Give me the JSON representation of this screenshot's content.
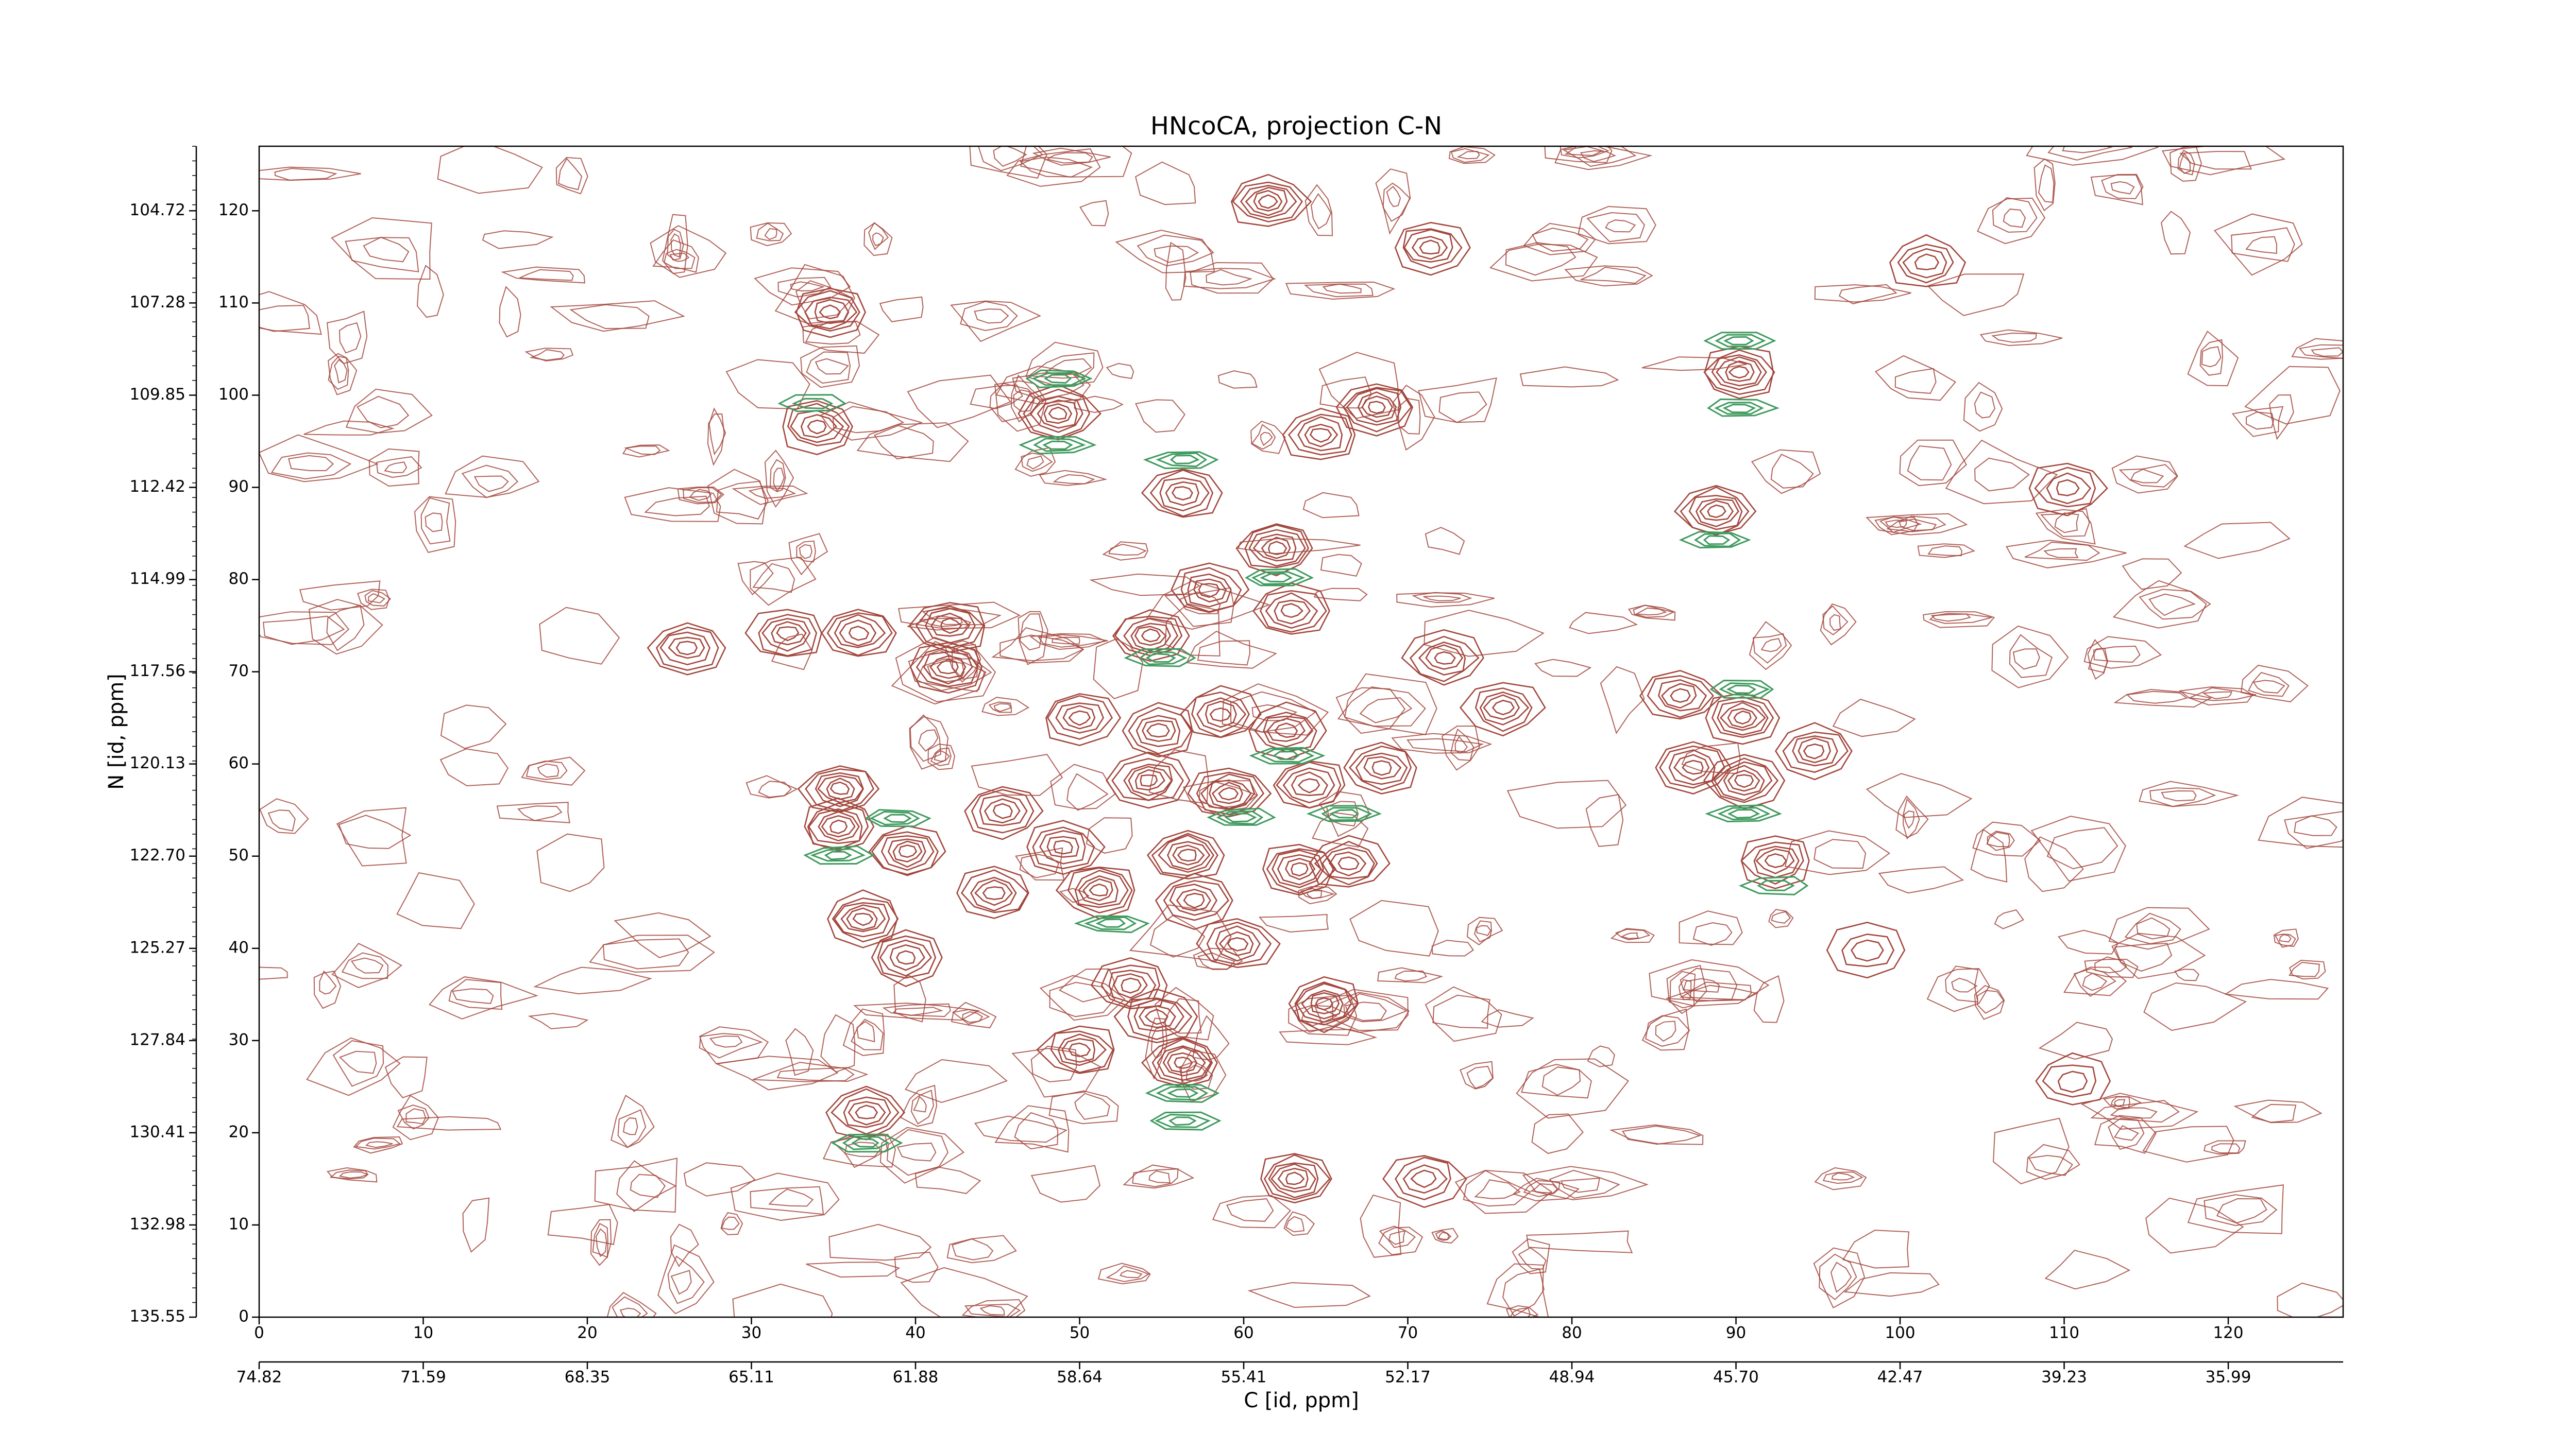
{
  "chart_data": {
    "type": "contour",
    "title": "HNcoCA, projection C-N",
    "xlabel": "C [id, ppm]",
    "ylabel": "N [id, ppm]",
    "xlim": [
      0,
      127
    ],
    "ylim": [
      0,
      127
    ],
    "xticks": [
      0,
      10,
      20,
      30,
      40,
      50,
      60,
      70,
      80,
      90,
      100,
      110,
      120
    ],
    "yticks": [
      0,
      10,
      20,
      30,
      40,
      50,
      60,
      70,
      80,
      90,
      100,
      110,
      120
    ],
    "xticks_ppm": [
      {
        "value": 0,
        "label": "74.82"
      },
      {
        "value": 10,
        "label": "71.59"
      },
      {
        "value": 20,
        "label": "68.35"
      },
      {
        "value": 30,
        "label": "65.11"
      },
      {
        "value": 40,
        "label": "61.88"
      },
      {
        "value": 50,
        "label": "58.64"
      },
      {
        "value": 60,
        "label": "55.41"
      },
      {
        "value": 70,
        "label": "52.17"
      },
      {
        "value": 80,
        "label": "48.94"
      },
      {
        "value": 90,
        "label": "45.70"
      },
      {
        "value": 100,
        "label": "42.47"
      },
      {
        "value": 110,
        "label": "39.23"
      },
      {
        "value": 120,
        "label": "35.99"
      }
    ],
    "yticks_ppm": [
      {
        "value": 0,
        "label": "135.55"
      },
      {
        "value": 10,
        "label": "132.98"
      },
      {
        "value": 20,
        "label": "130.41"
      },
      {
        "value": 30,
        "label": "127.84"
      },
      {
        "value": 40,
        "label": "125.27"
      },
      {
        "value": 50,
        "label": "122.70"
      },
      {
        "value": 60,
        "label": "120.13"
      },
      {
        "value": 70,
        "label": "117.56"
      },
      {
        "value": 80,
        "label": "114.99"
      },
      {
        "value": 90,
        "label": "112.42"
      },
      {
        "value": 100,
        "label": "109.85"
      },
      {
        "value": 110,
        "label": "107.28"
      },
      {
        "value": 120,
        "label": "104.72"
      }
    ],
    "series": [
      {
        "color": "#a3473d",
        "x": [
          61.5,
          71.4,
          34.8,
          90.2,
          48.7,
          34,
          68.1,
          64.7,
          56.3,
          88.8,
          62,
          26.1,
          32.2,
          36.5,
          42.1,
          42,
          54.3,
          57.9,
          62.9,
          72.2,
          75.8,
          86.6,
          90.4,
          94.8,
          87.4,
          90.5,
          35.4,
          35.3,
          39.5,
          92.4,
          36.8,
          39.4,
          44.8,
          49,
          45.3,
          54.2,
          59.1,
          64,
          68.4,
          51.2,
          56.6,
          63.4,
          66.4,
          58.6,
          54.8,
          50,
          62.6,
          57,
          53.1,
          59.6,
          64.9,
          54.7,
          50,
          56.3,
          37,
          63.1,
          71,
          101.6,
          110.2,
          98,
          110.5
        ],
        "values": [
          121,
          116,
          109,
          102.5,
          98,
          96.6,
          98.7,
          95.7,
          89.4,
          87.4,
          83.4,
          72.6,
          74.2,
          74.2,
          75,
          70.5,
          73.9,
          78.9,
          76.6,
          71.5,
          66.1,
          67.4,
          65,
          61.4,
          59.6,
          58.2,
          57.3,
          53.2,
          50.5,
          49.5,
          43.2,
          39,
          46,
          51,
          54.9,
          58.2,
          56.8,
          57.7,
          59.6,
          46.3,
          50.1,
          48.6,
          49.2,
          65.4,
          63.6,
          65,
          63.6,
          45.2,
          36,
          40.5,
          34,
          32.6,
          29,
          27.6,
          22.2,
          15,
          15,
          114.4,
          89.9,
          39.8,
          25.6
        ],
        "levels": [
          6,
          5,
          5,
          6,
          6,
          5,
          6,
          5,
          5,
          6,
          6,
          5,
          5,
          5,
          5,
          5,
          6,
          5,
          5,
          5,
          5,
          5,
          6,
          5,
          5,
          6,
          6,
          6,
          6,
          5,
          6,
          5,
          5,
          5,
          5,
          6,
          6,
          5,
          5,
          6,
          6,
          6,
          5,
          5,
          5,
          5,
          5,
          5,
          5,
          5,
          6,
          5,
          5,
          6,
          5,
          6,
          4,
          4,
          4,
          3,
          3
        ]
      },
      {
        "color": "#3f9a5e",
        "x": [
          90.2,
          90.2,
          48.7,
          48.7,
          56.3,
          62,
          88.8,
          90.4,
          90.5,
          37,
          56.3,
          56.3,
          33.8,
          35.3,
          38.9,
          55,
          62.6,
          59.8,
          66.2,
          92.4,
          52
        ],
        "values": [
          105.9,
          98.6,
          101.8,
          94.6,
          93,
          80.2,
          84.3,
          68.1,
          54.6,
          18.9,
          24.3,
          21.3,
          99.1,
          50.1,
          54.1,
          71.5,
          60.9,
          54.2,
          54.6,
          46.8,
          42.7
        ],
        "levels": [
          3,
          3,
          3,
          3,
          3,
          3,
          3,
          3,
          3,
          3,
          3,
          3,
          2,
          3,
          3,
          3,
          3,
          3,
          3,
          2,
          3
        ]
      }
    ]
  }
}
